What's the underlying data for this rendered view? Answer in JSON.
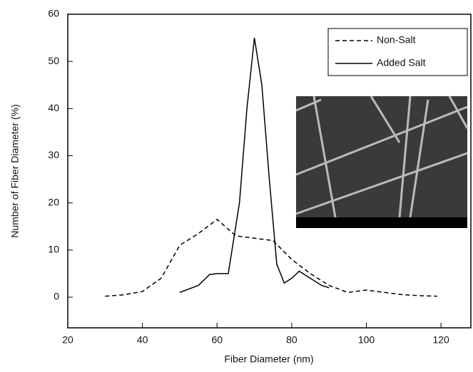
{
  "chart_data": {
    "type": "line",
    "x_label": "Fiber Diameter (nm)",
    "y_label": "Number of Fiber Diameter (%)",
    "xlim": [
      20,
      128
    ],
    "xticks": [
      20,
      40,
      60,
      80,
      100,
      120
    ],
    "ylim": [
      -6.5,
      60
    ],
    "yticks": [
      0,
      10,
      20,
      30,
      40,
      50,
      60
    ],
    "legend": "upper right",
    "series": [
      {
        "name": "Non-Salt",
        "color": "#000000",
        "linestyle": "dashed",
        "x": [
          30,
          35,
          40,
          45,
          50,
          55,
          60,
          65,
          70,
          75,
          80,
          85,
          90,
          95,
          100,
          105,
          110,
          115,
          119
        ],
        "values": [
          0.2,
          0.5,
          1.2,
          4,
          11,
          13.5,
          16.5,
          13,
          12.5,
          12,
          8,
          5,
          2.5,
          1,
          1.5,
          1,
          0.5,
          0.3,
          0.2
        ]
      },
      {
        "name": "Added Salt",
        "color": "#000000",
        "linestyle": "solid",
        "x": [
          50,
          55,
          58,
          60,
          63,
          66,
          68,
          70,
          72,
          74,
          76,
          78,
          80,
          82,
          85,
          88,
          90
        ],
        "values": [
          1,
          2.5,
          4.8,
          5,
          5,
          20,
          40,
          55,
          45,
          25,
          7,
          3,
          4,
          5.5,
          4,
          2.5,
          2
        ]
      }
    ]
  }
}
